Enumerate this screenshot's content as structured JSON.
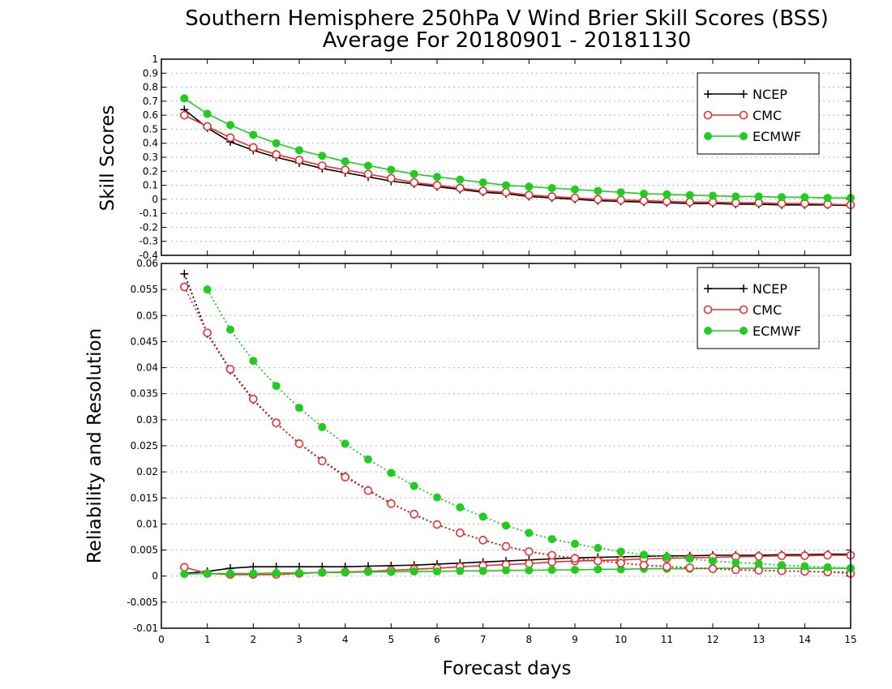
{
  "titles": {
    "line1": "Southern Hemisphere 250hPa V Wind Brier Skill Scores (BSS)",
    "line2": "Average For 20180901 - 20181130"
  },
  "xlabel": "Forecast days",
  "colors": {
    "NCEP": "#000000",
    "CMC": "#e83030",
    "ECMWF": "#1fcc1f"
  },
  "chart_data": [
    {
      "type": "line",
      "panel": "top",
      "ylabel": "Skill Scores",
      "xlim": [
        0,
        15
      ],
      "ylim": [
        -0.4,
        1
      ],
      "xticks": [
        0,
        1,
        2,
        3,
        4,
        5,
        6,
        7,
        8,
        9,
        10,
        11,
        12,
        13,
        14,
        15
      ],
      "yticks": [
        -0.4,
        -0.3,
        -0.2,
        -0.1,
        0,
        0.1,
        0.2,
        0.3,
        0.4,
        0.5,
        0.6,
        0.7,
        0.8,
        0.9,
        1
      ],
      "ytick_labels": [
        "-0.4",
        "-0.3",
        "-0.2",
        "-0.1",
        "0",
        "0.1",
        "0.2",
        "0.3",
        "0.4",
        "0.5",
        "0.6",
        "0.7",
        "0.8",
        "0.9",
        "1"
      ],
      "grid": true,
      "legend": {
        "position": "top-right",
        "entries": [
          "NCEP",
          "CMC",
          "ECMWF"
        ]
      },
      "x": [
        0.5,
        1,
        1.5,
        2,
        2.5,
        3,
        3.5,
        4,
        4.5,
        5,
        5.5,
        6,
        6.5,
        7,
        7.5,
        8,
        8.5,
        9,
        9.5,
        10,
        10.5,
        11,
        11.5,
        12,
        12.5,
        13,
        13.5,
        14,
        14.5,
        15
      ],
      "series": [
        {
          "name": "NCEP",
          "values": [
            0.64,
            0.51,
            0.41,
            0.35,
            0.3,
            0.26,
            0.22,
            0.19,
            0.16,
            0.13,
            0.11,
            0.09,
            0.07,
            0.05,
            0.04,
            0.02,
            0.01,
            0.0,
            -0.01,
            -0.015,
            -0.02,
            -0.025,
            -0.03,
            -0.03,
            -0.035,
            -0.035,
            -0.04,
            -0.04,
            -0.04,
            -0.045
          ]
        },
        {
          "name": "CMC",
          "values": [
            0.6,
            0.52,
            0.44,
            0.37,
            0.32,
            0.28,
            0.24,
            0.21,
            0.18,
            0.15,
            0.12,
            0.1,
            0.08,
            0.06,
            0.05,
            0.03,
            0.02,
            0.01,
            0.0,
            -0.005,
            -0.01,
            -0.015,
            -0.02,
            -0.02,
            -0.025,
            -0.025,
            -0.03,
            -0.03,
            -0.035,
            -0.04
          ]
        },
        {
          "name": "ECMWF",
          "values": [
            0.72,
            0.61,
            0.53,
            0.46,
            0.4,
            0.35,
            0.31,
            0.27,
            0.24,
            0.21,
            0.18,
            0.16,
            0.14,
            0.12,
            0.1,
            0.09,
            0.08,
            0.07,
            0.06,
            0.05,
            0.04,
            0.035,
            0.03,
            0.025,
            0.02,
            0.02,
            0.015,
            0.015,
            0.01,
            0.01
          ]
        }
      ]
    },
    {
      "type": "line",
      "panel": "bottom",
      "ylabel": "Reliability and Resolution",
      "xlim": [
        0,
        15
      ],
      "ylim": [
        -0.01,
        0.06
      ],
      "xticks": [
        0,
        1,
        2,
        3,
        4,
        5,
        6,
        7,
        8,
        9,
        10,
        11,
        12,
        13,
        14,
        15
      ],
      "xtick_labels": [
        "0",
        "1",
        "2",
        "3",
        "4",
        "5",
        "6",
        "7",
        "8",
        "9",
        "10",
        "11",
        "12",
        "13",
        "14",
        "15"
      ],
      "yticks": [
        -0.01,
        -0.005,
        0,
        0.005,
        0.01,
        0.015,
        0.02,
        0.025,
        0.03,
        0.035,
        0.04,
        0.045,
        0.05,
        0.055,
        0.06
      ],
      "ytick_labels": [
        "-0.01",
        "-0.005",
        "0",
        "0.005",
        "0.01",
        "0.015",
        "0.02",
        "0.025",
        "0.03",
        "0.035",
        "0.04",
        "0.045",
        "0.05",
        "0.055",
        "0.06"
      ],
      "grid": true,
      "legend": {
        "position": "top-right",
        "entries": [
          "NCEP",
          "CMC",
          "ECMWF"
        ]
      },
      "x": [
        0.5,
        1,
        1.5,
        2,
        2.5,
        3,
        3.5,
        4,
        4.5,
        5,
        5.5,
        6,
        6.5,
        7,
        7.5,
        8,
        8.5,
        9,
        9.5,
        10,
        10.5,
        11,
        11.5,
        12,
        12.5,
        13,
        13.5,
        14,
        14.5,
        15
      ],
      "series": [
        {
          "name": "NCEP",
          "component": "reliability",
          "style": "solid",
          "values": [
            0.0005,
            0.0009,
            0.0015,
            0.0018,
            0.0018,
            0.0018,
            0.0018,
            0.0018,
            0.0019,
            0.002,
            0.0021,
            0.0023,
            0.0025,
            0.0027,
            0.0029,
            0.0031,
            0.0033,
            0.0035,
            0.0036,
            0.0037,
            0.0038,
            0.0039,
            0.0039,
            0.004,
            0.004,
            0.004,
            0.0041,
            0.0041,
            0.0042,
            0.0042
          ]
        },
        {
          "name": "CMC",
          "component": "reliability",
          "style": "solid",
          "values": [
            0.0017,
            0.0005,
            0.0003,
            0.0003,
            0.0003,
            0.0005,
            0.0007,
            0.0008,
            0.0009,
            0.0011,
            0.0013,
            0.0015,
            0.0018,
            0.002,
            0.0022,
            0.0024,
            0.0027,
            0.0029,
            0.003,
            0.0031,
            0.0033,
            0.0034,
            0.0035,
            0.0036,
            0.0037,
            0.0038,
            0.0039,
            0.0039,
            0.004,
            0.004
          ]
        },
        {
          "name": "ECMWF",
          "component": "reliability",
          "style": "solid",
          "values": [
            0.0004,
            0.0005,
            0.0005,
            0.0005,
            0.0006,
            0.0006,
            0.0007,
            0.0007,
            0.0008,
            0.0008,
            0.0009,
            0.0009,
            0.001,
            0.001,
            0.0011,
            0.0011,
            0.0012,
            0.0012,
            0.0013,
            0.0013,
            0.0014,
            0.0014,
            0.0014,
            0.0015,
            0.0015,
            0.0015,
            0.0015,
            0.0015,
            0.0015,
            0.0015
          ]
        },
        {
          "name": "NCEP",
          "component": "resolution",
          "style": "dotted",
          "values": [
            0.058,
            0.0465,
            0.0395,
            0.0338,
            0.0293,
            0.0255,
            0.0222,
            0.0192,
            0.0165,
            0.014,
            0.0118,
            0.0099,
            0.0083,
            0.0069,
            0.0057,
            0.0047,
            0.004,
            0.0034,
            0.0029,
            0.0025,
            0.0021,
            0.0018,
            0.0016,
            0.0014,
            0.0012,
            0.0011,
            0.001,
            0.0009,
            0.0008,
            0.0007
          ]
        },
        {
          "name": "CMC",
          "component": "resolution",
          "style": "dotted",
          "values": [
            0.0555,
            0.0467,
            0.0397,
            0.034,
            0.0294,
            0.0254,
            0.0221,
            0.019,
            0.0164,
            0.0139,
            0.0119,
            0.0099,
            0.0083,
            0.0069,
            0.0057,
            0.0047,
            0.004,
            0.0034,
            0.0029,
            0.0025,
            0.0021,
            0.0018,
            0.0016,
            0.0014,
            0.0012,
            0.0011,
            0.001,
            0.0009,
            0.0008,
            0.0005
          ]
        },
        {
          "name": "ECMWF",
          "component": "resolution",
          "style": "dotted",
          "values": [
            0.061,
            0.055,
            0.0473,
            0.0413,
            0.0365,
            0.0323,
            0.0286,
            0.0254,
            0.0224,
            0.0198,
            0.0173,
            0.0151,
            0.0132,
            0.0114,
            0.0097,
            0.0083,
            0.0071,
            0.0062,
            0.0054,
            0.0047,
            0.0041,
            0.0037,
            0.0033,
            0.0029,
            0.0026,
            0.0024,
            0.0021,
            0.0019,
            0.0017,
            0.0015
          ]
        }
      ]
    }
  ]
}
